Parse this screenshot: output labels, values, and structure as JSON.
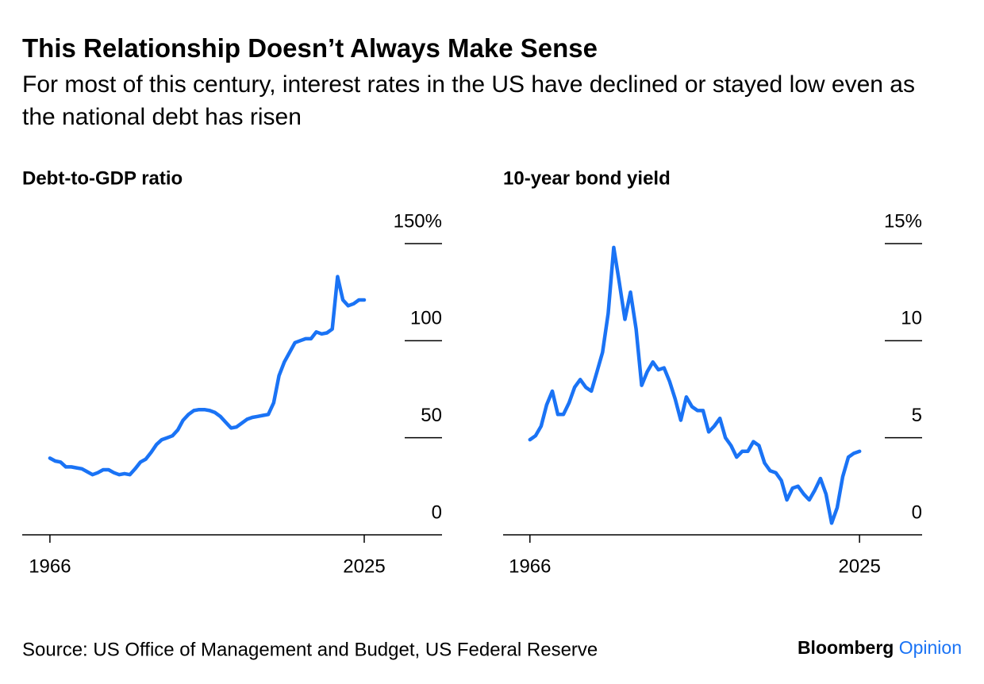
{
  "title": "This Relationship Doesn’t Always Make Sense",
  "subtitle": "For most of this century, interest rates in the US have declined or stayed low even as the national debt has risen",
  "source": "Source: US Office of Management and Budget, US Federal Reserve",
  "brand": {
    "name": "Bloomberg",
    "product": "Opinion"
  },
  "chart_data": [
    {
      "type": "line",
      "title": "Debt-to-GDP ratio",
      "color": "#1a73f5",
      "x": [
        1966,
        1967,
        1968,
        1969,
        1970,
        1971,
        1972,
        1973,
        1974,
        1975,
        1976,
        1977,
        1978,
        1979,
        1980,
        1981,
        1982,
        1983,
        1984,
        1985,
        1986,
        1987,
        1988,
        1989,
        1990,
        1991,
        1992,
        1993,
        1994,
        1995,
        1996,
        1997,
        1998,
        1999,
        2000,
        2001,
        2002,
        2003,
        2004,
        2005,
        2006,
        2007,
        2008,
        2009,
        2010,
        2011,
        2012,
        2013,
        2014,
        2015,
        2016,
        2017,
        2018,
        2019,
        2020,
        2021,
        2022,
        2023,
        2024,
        2025
      ],
      "values": [
        39.5,
        38,
        37.5,
        35,
        35,
        34.5,
        34,
        32.5,
        31,
        32,
        33.5,
        33.5,
        32,
        31,
        31.5,
        31,
        34,
        37.5,
        39,
        42.5,
        46.5,
        49,
        50,
        51,
        54,
        59,
        62,
        64,
        64.5,
        64.5,
        64,
        63,
        61,
        58,
        55,
        55.5,
        57.5,
        59.5,
        60.5,
        61,
        61.5,
        62,
        68,
        82,
        89,
        94,
        99,
        100,
        101,
        101,
        104.5,
        103.5,
        104,
        106,
        133,
        121,
        118,
        119,
        121,
        121
      ],
      "xlim": [
        1960.8,
        2039.6
      ],
      "xticks": [
        1966,
        2025
      ],
      "ylim": [
        0,
        150
      ],
      "yticks": [
        0,
        50,
        100,
        {
          "value": 150,
          "label": "150%"
        }
      ]
    },
    {
      "type": "line",
      "title": "10-year bond yield",
      "color": "#1a73f5",
      "x": [
        1966,
        1967,
        1968,
        1969,
        1970,
        1971,
        1972,
        1973,
        1974,
        1975,
        1976,
        1977,
        1978,
        1979,
        1980,
        1981,
        1982,
        1983,
        1984,
        1985,
        1986,
        1987,
        1988,
        1989,
        1990,
        1991,
        1992,
        1993,
        1994,
        1995,
        1996,
        1997,
        1998,
        1999,
        2000,
        2001,
        2002,
        2003,
        2004,
        2005,
        2006,
        2007,
        2008,
        2009,
        2010,
        2011,
        2012,
        2013,
        2014,
        2015,
        2016,
        2017,
        2018,
        2019,
        2020,
        2021,
        2022,
        2023,
        2024,
        2025
      ],
      "values": [
        4.9,
        5.1,
        5.6,
        6.7,
        7.4,
        6.2,
        6.2,
        6.8,
        7.6,
        8.0,
        7.6,
        7.4,
        8.4,
        9.4,
        11.4,
        14.8,
        13.0,
        11.1,
        12.5,
        10.6,
        7.7,
        8.4,
        8.9,
        8.5,
        8.6,
        7.9,
        7.0,
        5.9,
        7.1,
        6.6,
        6.4,
        6.4,
        5.3,
        5.6,
        6.0,
        5.0,
        4.6,
        4.0,
        4.3,
        4.3,
        4.8,
        4.6,
        3.7,
        3.3,
        3.2,
        2.8,
        1.8,
        2.4,
        2.5,
        2.1,
        1.8,
        2.3,
        2.9,
        2.1,
        0.6,
        1.4,
        3.0,
        4.0,
        4.2,
        4.3
      ],
      "xlim": [
        1961.2,
        2036.2
      ],
      "xticks": [
        1966,
        2025
      ],
      "ylim": [
        0,
        15
      ],
      "yticks": [
        0,
        5,
        10,
        {
          "value": 15,
          "label": "15%"
        }
      ]
    }
  ]
}
